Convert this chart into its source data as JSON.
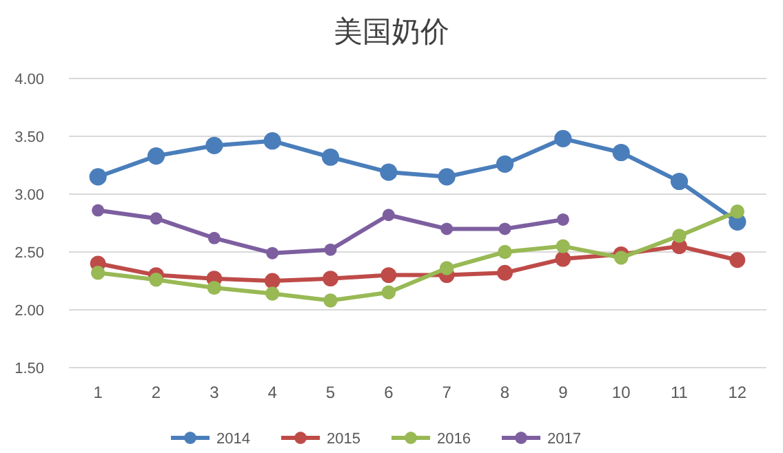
{
  "chart_data": {
    "type": "line",
    "title": "美国奶价",
    "categories": [
      "1",
      "2",
      "3",
      "4",
      "5",
      "6",
      "7",
      "8",
      "9",
      "10",
      "11",
      "12"
    ],
    "series": [
      {
        "name": "2014",
        "color": "#4a7ebb",
        "values": [
          3.15,
          3.33,
          3.42,
          3.46,
          3.32,
          3.19,
          3.15,
          3.26,
          3.48,
          3.36,
          3.11,
          2.76
        ]
      },
      {
        "name": "2015",
        "color": "#be4b48",
        "values": [
          2.4,
          2.3,
          2.27,
          2.25,
          2.27,
          2.3,
          2.3,
          2.32,
          2.44,
          2.48,
          2.55,
          2.43
        ]
      },
      {
        "name": "2016",
        "color": "#98b954",
        "values": [
          2.32,
          2.26,
          2.19,
          2.14,
          2.08,
          2.15,
          2.36,
          2.5,
          2.55,
          2.45,
          2.64,
          2.85
        ]
      },
      {
        "name": "2017",
        "color": "#7d5fa0",
        "values": [
          2.86,
          2.79,
          2.62,
          2.49,
          2.52,
          2.82,
          2.7,
          2.7,
          2.78,
          null,
          null,
          null
        ]
      }
    ],
    "ylim": [
      1.5,
      4.0
    ],
    "yticks": [
      {
        "value": 1.5,
        "label": "1.50"
      },
      {
        "value": 2.0,
        "label": "2.00"
      },
      {
        "value": 2.5,
        "label": "2.50"
      },
      {
        "value": 3.0,
        "label": "3.00"
      },
      {
        "value": 3.5,
        "label": "3.50"
      },
      {
        "value": 4.0,
        "label": "4.00"
      }
    ],
    "grid": "y",
    "legend": "bottom",
    "marker": "circle",
    "line_style": "solid"
  }
}
